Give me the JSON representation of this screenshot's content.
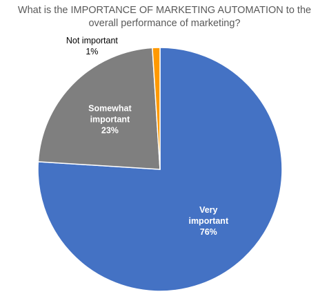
{
  "chart_data": {
    "type": "pie",
    "title_lines": [
      "What is the IMPORTANCE OF MARKETING AUTOMATION to the",
      "overall performance of marketing?"
    ],
    "slices": [
      {
        "label_lines": [
          "Very",
          "important"
        ],
        "value": 76,
        "value_label": "76%",
        "color": "#4472C4"
      },
      {
        "label_lines": [
          "Somewhat",
          "important"
        ],
        "value": 23,
        "value_label": "23%",
        "color": "#7F7F7F"
      },
      {
        "label_lines": [
          "Not important"
        ],
        "value": 1,
        "value_label": "1%",
        "color": "#FF9900"
      }
    ],
    "legend": "none"
  }
}
